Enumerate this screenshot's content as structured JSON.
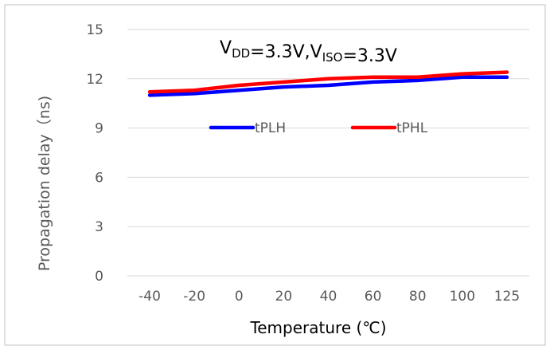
{
  "chart_data": {
    "type": "line",
    "categories": [
      "-40",
      "-20",
      "0",
      "20",
      "40",
      "60",
      "80",
      "100",
      "125"
    ],
    "series": [
      {
        "name": "tPLH",
        "color": "#0000ff",
        "values": [
          11.0,
          11.1,
          11.3,
          11.5,
          11.6,
          11.8,
          11.9,
          12.1,
          12.1
        ]
      },
      {
        "name": "tPHL",
        "color": "#ff0000",
        "values": [
          11.2,
          11.3,
          11.6,
          11.8,
          12.0,
          12.1,
          12.1,
          12.3,
          12.4
        ]
      }
    ],
    "xlabel": "Temperature (℃)",
    "ylabel": "Propagation delay（ns)",
    "ylim": [
      0,
      15
    ],
    "yticks": [
      0,
      3,
      6,
      9,
      12,
      15
    ],
    "grid": true,
    "legend_placement": "center",
    "annotation": {
      "parts": [
        {
          "text": "V",
          "sub": false
        },
        {
          "text": "DD",
          "sub": true
        },
        {
          "text": "=3.3V,V",
          "sub": false
        },
        {
          "text": "ISO",
          "sub": true
        },
        {
          "text": "=3.3V",
          "sub": false
        }
      ]
    }
  }
}
